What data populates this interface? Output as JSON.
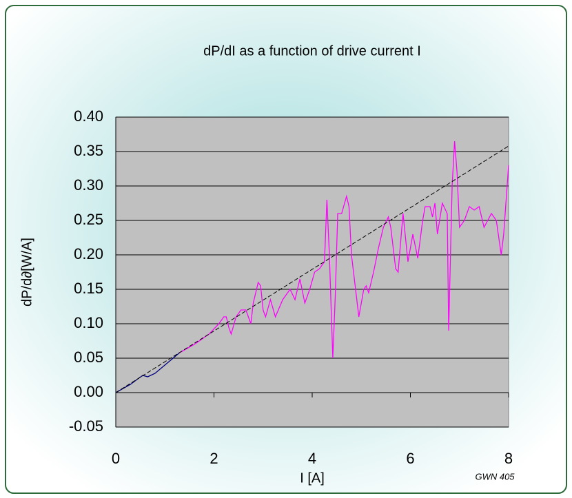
{
  "chart_data": {
    "type": "line",
    "title": "dP/dI as a function of drive current I",
    "x_label": "I [A]",
    "y_label": "dP/d∂[W/A]",
    "annotation": "GWN 405",
    "xlim": [
      0,
      8
    ],
    "xticks": [
      0,
      2,
      4,
      6,
      8
    ],
    "ylim": [
      -0.05,
      0.4
    ],
    "yticks": [
      {
        "value": -0.05,
        "label": "-0.05"
      },
      {
        "value": 0,
        "label": "0.00"
      },
      {
        "value": 0.05,
        "label": "0.05"
      },
      {
        "value": 0.1,
        "label": "0.10"
      },
      {
        "value": 0.15,
        "label": "0.15"
      },
      {
        "value": 0.2,
        "label": "0.20"
      },
      {
        "value": 0.25,
        "label": "0.25"
      },
      {
        "value": 0.3,
        "label": "0.30"
      },
      {
        "value": 0.35,
        "label": "0.35"
      },
      {
        "value": 0.4,
        "label": "0.40"
      }
    ],
    "grid": true,
    "series": [
      {
        "color": "#ff00ff",
        "x": [
          1.3,
          1.6,
          1.9,
          2.1,
          2.2,
          2.25,
          2.3,
          2.35,
          2.45,
          2.55,
          2.65,
          2.75,
          2.8,
          2.9,
          2.95,
          3.0,
          3.05,
          3.15,
          3.25,
          3.4,
          3.55,
          3.65,
          3.75,
          3.85,
          3.95,
          4.05,
          4.15,
          4.25,
          4.3,
          4.35,
          4.42,
          4.47,
          4.52,
          4.6,
          4.7,
          4.75,
          4.8,
          4.9,
          4.95,
          5.0,
          5.05,
          5.1,
          5.15,
          5.25,
          5.35,
          5.45,
          5.55,
          5.6,
          5.7,
          5.75,
          5.85,
          5.95,
          6.05,
          6.15,
          6.25,
          6.3,
          6.4,
          6.45,
          6.5,
          6.55,
          6.65,
          6.75,
          6.78,
          6.85,
          6.9,
          6.95,
          7.0,
          7.1,
          7.2,
          7.3,
          7.4,
          7.5,
          7.65,
          7.75,
          7.85,
          7.9,
          8.0
        ],
        "values": [
          0.058,
          0.07,
          0.085,
          0.1,
          0.11,
          0.11,
          0.095,
          0.085,
          0.11,
          0.12,
          0.12,
          0.1,
          0.13,
          0.16,
          0.155,
          0.12,
          0.11,
          0.135,
          0.11,
          0.135,
          0.15,
          0.135,
          0.165,
          0.13,
          0.15,
          0.175,
          0.18,
          0.19,
          0.28,
          0.2,
          0.05,
          0.14,
          0.26,
          0.26,
          0.285,
          0.27,
          0.2,
          0.14,
          0.11,
          0.13,
          0.15,
          0.155,
          0.145,
          0.175,
          0.21,
          0.24,
          0.255,
          0.24,
          0.18,
          0.175,
          0.26,
          0.19,
          0.23,
          0.195,
          0.25,
          0.27,
          0.27,
          0.255,
          0.275,
          0.23,
          0.275,
          0.26,
          0.09,
          0.3,
          0.365,
          0.32,
          0.24,
          0.25,
          0.27,
          0.265,
          0.27,
          0.24,
          0.26,
          0.25,
          0.2,
          0.23,
          0.33
        ]
      },
      {
        "color": "#000080",
        "x": [
          0,
          0.3,
          0.45,
          0.55,
          0.65,
          0.8,
          1.0,
          1.2,
          1.3
        ],
        "values": [
          0,
          0.012,
          0.02,
          0.025,
          0.023,
          0.028,
          0.04,
          0.052,
          0.058
        ]
      },
      {
        "color": "#000000",
        "dash": true,
        "x": [
          0,
          8
        ],
        "values": [
          0,
          0.358
        ]
      }
    ]
  }
}
